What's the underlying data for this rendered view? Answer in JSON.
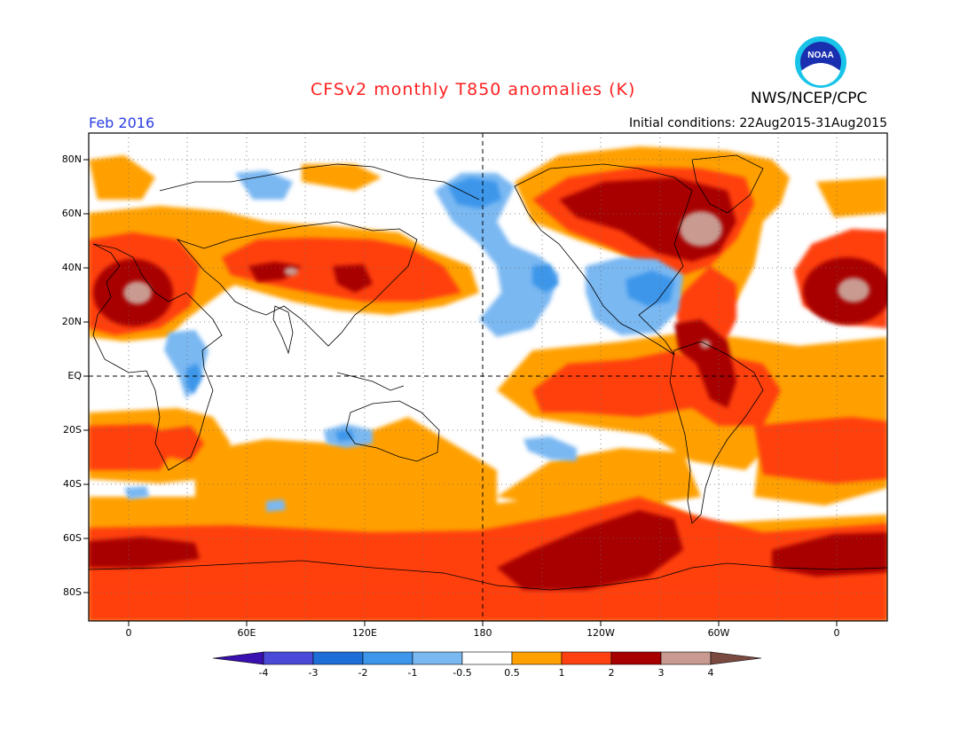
{
  "header": {
    "title": "CFSv2 monthly T850 anomalies (K)",
    "agency": "NWS/NCEP/CPC",
    "logo_text": "NOAA",
    "period": "Feb 2016",
    "initial_conditions": "Initial conditions: 22Aug2015-31Aug2015"
  },
  "map": {
    "lat_labels": [
      "80N",
      "60N",
      "40N",
      "20N",
      "EQ",
      "20S",
      "40S",
      "60S",
      "80S"
    ],
    "lon_labels": [
      "0",
      "60E",
      "120E",
      "180",
      "120W",
      "60W",
      "0"
    ]
  },
  "colorbar": {
    "labels": [
      "-4",
      "-3",
      "-2",
      "-1",
      "-0.5",
      "0.5",
      "1",
      "2",
      "3",
      "4"
    ],
    "colors": [
      "#3a10b0",
      "#4a4ad8",
      "#1e6ed8",
      "#3c96ea",
      "#7ab8f2",
      "#ffffff",
      "#ffa000",
      "#ff4010",
      "#a80000",
      "#c89a90",
      "#7a4a40"
    ]
  }
}
